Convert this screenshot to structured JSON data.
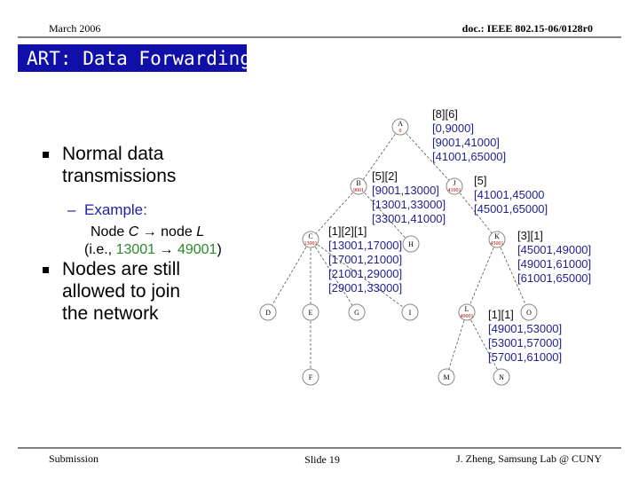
{
  "header": {
    "date": "March 2006",
    "doc": "doc.: IEEE 802.15-06/0128r0"
  },
  "title": "ART: Data Forwarding",
  "bullets": [
    {
      "lines": [
        "Normal data",
        "transmissions"
      ],
      "sub": {
        "label": "Example:",
        "line1": [
          "Node ",
          "C",
          " → node ",
          "L"
        ],
        "line2": [
          "(i.e., ",
          "13001",
          " → ",
          "49001",
          ")"
        ]
      }
    },
    {
      "lines": [
        "Nodes are still",
        "allowed to join",
        "the network"
      ]
    }
  ],
  "nodes": [
    {
      "label": "A",
      "address": "0"
    },
    {
      "label": "B",
      "address": "9001"
    },
    {
      "label": "J",
      "address": "41001"
    },
    {
      "label": "C",
      "address": "13001"
    },
    {
      "label": "H"
    },
    {
      "label": "K",
      "address": "45001"
    },
    {
      "label": "D"
    },
    {
      "label": "E"
    },
    {
      "label": "G"
    },
    {
      "label": "I"
    },
    {
      "label": "L",
      "address": "49001"
    },
    {
      "label": "O"
    },
    {
      "label": "F"
    },
    {
      "label": "M"
    },
    {
      "label": "N"
    }
  ],
  "annotations": [
    {
      "counts": "[8][6]",
      "ranges": [
        "[0,9000]",
        "[9001,41000]",
        "[41001,65000]"
      ]
    },
    {
      "counts": "[5][2]",
      "ranges": [
        "[9001,13000]",
        "[13001,33000]",
        "[33001,41000]"
      ]
    },
    {
      "counts": "[5]",
      "ranges": [
        "[41001,45000",
        "[45001,65000]"
      ]
    },
    {
      "counts": "[1][2][1]",
      "ranges": [
        "[13001,17000]",
        "[17001,21000]",
        "[21001,29000]",
        "[29001,33000]"
      ]
    },
    {
      "counts": "[3][1]",
      "ranges": [
        "[45001,49000]",
        "[49001,61000]",
        "[61001,65000]"
      ]
    },
    {
      "counts": "[1][1]",
      "ranges": [
        "[49001,53000]",
        "[53001,57000]",
        "[57001,61000]"
      ]
    }
  ],
  "footer": {
    "left": "Submission",
    "center": "Slide 19",
    "right": "J. Zheng, Samsung Lab @ CUNY"
  }
}
